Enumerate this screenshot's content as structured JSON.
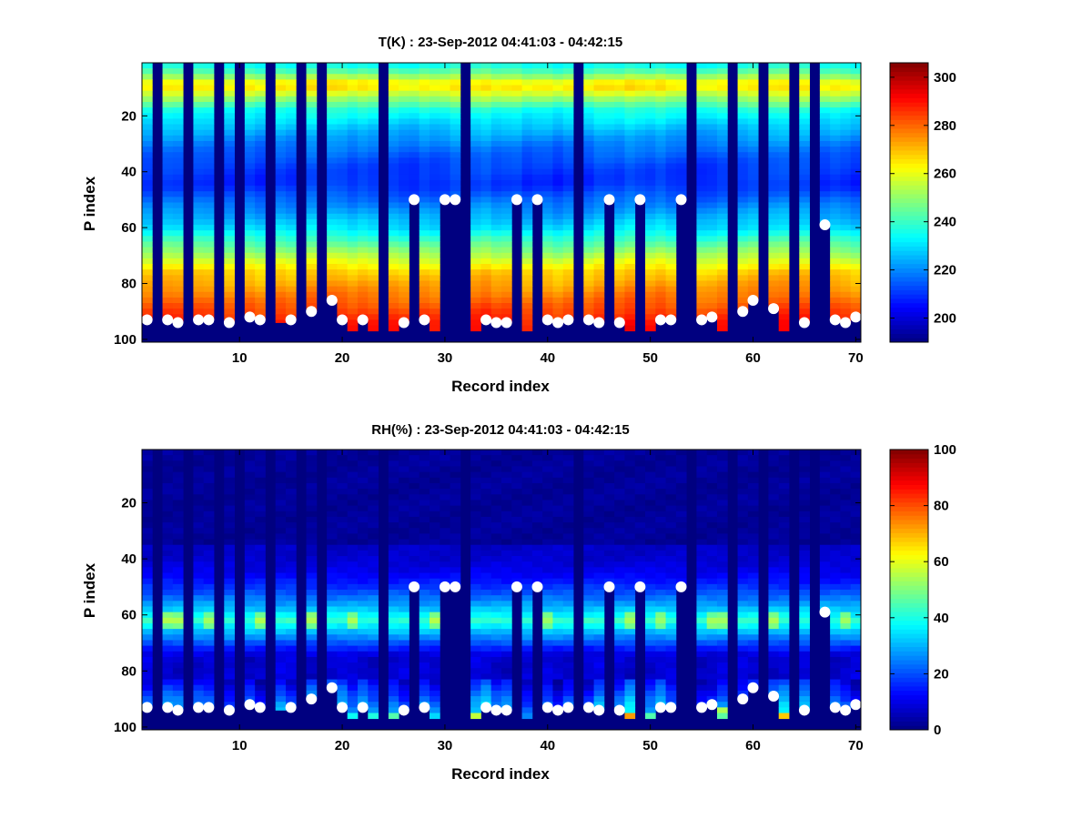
{
  "chart_data": [
    {
      "type": "heatmap",
      "title": "T(K) : 23-Sep-2012 04:41:03 - 04:42:15",
      "xlabel": "Record index",
      "ylabel": "P index",
      "xlim": [
        1,
        70
      ],
      "ylim": [
        1,
        101
      ],
      "y_reversed": true,
      "xticks": [
        10,
        20,
        30,
        40,
        50,
        60,
        70
      ],
      "yticks": [
        20,
        40,
        60,
        80,
        100
      ],
      "colormap": "jet",
      "colorbar": {
        "min": 190,
        "max": 306,
        "ticks": [
          200,
          220,
          240,
          260,
          280,
          300
        ]
      },
      "missing_columns": [
        2,
        5,
        8,
        10,
        13,
        16,
        18,
        24,
        32,
        43,
        54,
        58,
        61,
        64,
        66
      ],
      "profile_peak": {
        "p_index": 9,
        "value": 268
      },
      "profile_min": {
        "p_index": 45,
        "value": 210
      },
      "profile_bottom": {
        "p_index": 95,
        "value": 290
      },
      "column_bottom_p": [
        93,
        101,
        93,
        94,
        101,
        93,
        93,
        101,
        94,
        101,
        92,
        93,
        98,
        94,
        93,
        101,
        90,
        101,
        86,
        93,
        97,
        93,
        97,
        101,
        97,
        94,
        50,
        93,
        97,
        50,
        50,
        101,
        97,
        93,
        94,
        94,
        50,
        97,
        50,
        93,
        94,
        93,
        101,
        93,
        94,
        50,
        94,
        97,
        50,
        97,
        93,
        93,
        50,
        101,
        93,
        92,
        97,
        101,
        90,
        86,
        101,
        89,
        97,
        101,
        94,
        101,
        59,
        93,
        94,
        92
      ],
      "markers": {
        "color": "#ffffff",
        "points": [
          [
            1,
            93
          ],
          [
            3,
            93
          ],
          [
            4,
            94
          ],
          [
            6,
            93
          ],
          [
            7,
            93
          ],
          [
            9,
            94
          ],
          [
            11,
            92
          ],
          [
            12,
            93
          ],
          [
            15,
            93
          ],
          [
            17,
            90
          ],
          [
            19,
            86
          ],
          [
            20,
            93
          ],
          [
            22,
            93
          ],
          [
            26,
            94
          ],
          [
            27,
            50
          ],
          [
            28,
            93
          ],
          [
            30,
            50
          ],
          [
            31,
            50
          ],
          [
            34,
            93
          ],
          [
            35,
            94
          ],
          [
            36,
            94
          ],
          [
            37,
            50
          ],
          [
            39,
            50
          ],
          [
            40,
            93
          ],
          [
            41,
            94
          ],
          [
            42,
            93
          ],
          [
            44,
            93
          ],
          [
            45,
            94
          ],
          [
            46,
            50
          ],
          [
            47,
            94
          ],
          [
            49,
            50
          ],
          [
            51,
            93
          ],
          [
            52,
            93
          ],
          [
            53,
            50
          ],
          [
            55,
            93
          ],
          [
            56,
            92
          ],
          [
            59,
            90
          ],
          [
            60,
            86
          ],
          [
            62,
            89
          ],
          [
            65,
            94
          ],
          [
            67,
            59
          ],
          [
            68,
            93
          ],
          [
            69,
            94
          ],
          [
            70,
            92
          ]
        ]
      }
    },
    {
      "type": "heatmap",
      "title": "RH(%) : 23-Sep-2012 04:41:03 - 04:42:15",
      "xlabel": "Record index",
      "ylabel": "P index",
      "xlim": [
        1,
        70
      ],
      "ylim": [
        1,
        101
      ],
      "y_reversed": true,
      "xticks": [
        10,
        20,
        30,
        40,
        50,
        60,
        70
      ],
      "yticks": [
        20,
        40,
        60,
        80,
        100
      ],
      "colormap": "jet",
      "colorbar": {
        "min": 0,
        "max": 100,
        "ticks": [
          0,
          20,
          40,
          60,
          80,
          100
        ]
      },
      "missing_columns": [
        2,
        5,
        8,
        10,
        13,
        16,
        18,
        24,
        32,
        43,
        54,
        58,
        61,
        64,
        66
      ],
      "moist_layer": {
        "p_top": 36,
        "p_peak": 62,
        "p_bottom": 75,
        "peak_value": 42
      },
      "low_layer": {
        "p_top": 84,
        "p_bottom": 95,
        "peak_value": 30
      },
      "column_bottom_p": [
        93,
        101,
        93,
        94,
        101,
        93,
        93,
        101,
        94,
        101,
        92,
        93,
        98,
        94,
        93,
        101,
        90,
        101,
        86,
        93,
        97,
        93,
        97,
        101,
        97,
        94,
        50,
        93,
        97,
        50,
        50,
        101,
        97,
        93,
        94,
        94,
        50,
        97,
        50,
        93,
        94,
        93,
        101,
        93,
        94,
        50,
        94,
        97,
        50,
        97,
        93,
        93,
        50,
        101,
        93,
        92,
        97,
        101,
        90,
        86,
        101,
        89,
        97,
        101,
        94,
        101,
        59,
        93,
        94,
        92
      ],
      "markers": {
        "color": "#ffffff",
        "points": [
          [
            1,
            93
          ],
          [
            3,
            93
          ],
          [
            4,
            94
          ],
          [
            6,
            93
          ],
          [
            7,
            93
          ],
          [
            9,
            94
          ],
          [
            11,
            92
          ],
          [
            12,
            93
          ],
          [
            15,
            93
          ],
          [
            17,
            90
          ],
          [
            19,
            86
          ],
          [
            20,
            93
          ],
          [
            22,
            93
          ],
          [
            26,
            94
          ],
          [
            27,
            50
          ],
          [
            28,
            93
          ],
          [
            30,
            50
          ],
          [
            31,
            50
          ],
          [
            34,
            93
          ],
          [
            35,
            94
          ],
          [
            36,
            94
          ],
          [
            37,
            50
          ],
          [
            39,
            50
          ],
          [
            40,
            93
          ],
          [
            41,
            94
          ],
          [
            42,
            93
          ],
          [
            44,
            93
          ],
          [
            45,
            94
          ],
          [
            46,
            50
          ],
          [
            47,
            94
          ],
          [
            49,
            50
          ],
          [
            51,
            93
          ],
          [
            52,
            93
          ],
          [
            53,
            50
          ],
          [
            55,
            93
          ],
          [
            56,
            92
          ],
          [
            59,
            90
          ],
          [
            60,
            86
          ],
          [
            62,
            89
          ],
          [
            65,
            94
          ],
          [
            67,
            59
          ],
          [
            68,
            93
          ],
          [
            69,
            94
          ],
          [
            70,
            92
          ]
        ]
      }
    }
  ]
}
